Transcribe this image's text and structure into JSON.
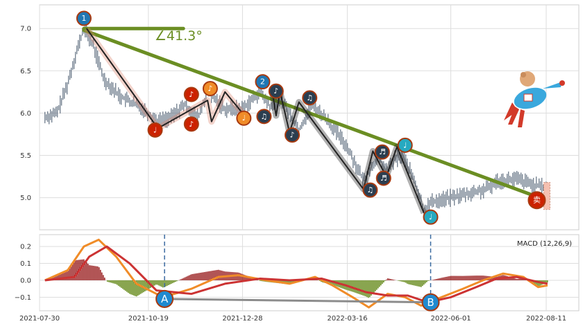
{
  "chart_data": [
    {
      "type": "candlestick",
      "title": "",
      "xlabel": "",
      "ylabel": "",
      "ylim": [
        4.62,
        7.28
      ],
      "grid": true,
      "x_tick_labels": [
        "2021-07-30",
        "2021-10-19",
        "2021-12-28",
        "2022-03-16",
        "2022-06-01",
        "2022-08-11"
      ],
      "x_tick_dates": [
        "2021-07-30",
        "2021-10-19",
        "2021-12-28",
        "2022-03-16",
        "2022-06-01",
        "2022-08-11"
      ],
      "y_ticks": [
        5.0,
        5.5,
        6.0,
        6.5,
        7.0
      ],
      "y_tick_labels": [
        "5.0",
        "5.5",
        "6.0",
        "6.5",
        "7.0"
      ],
      "price_path": [
        {
          "date": "2021-08-03",
          "close": 5.95
        },
        {
          "date": "2021-08-12",
          "close": 6.0
        },
        {
          "date": "2021-08-20",
          "close": 6.35
        },
        {
          "date": "2021-08-26",
          "close": 6.7
        },
        {
          "date": "2021-09-01",
          "close": 7.0
        },
        {
          "date": "2021-09-08",
          "close": 6.8
        },
        {
          "date": "2021-09-16",
          "close": 6.4
        },
        {
          "date": "2021-09-28",
          "close": 6.2
        },
        {
          "date": "2021-10-15",
          "close": 6.05
        },
        {
          "date": "2021-10-26",
          "close": 5.9
        },
        {
          "date": "2021-11-05",
          "close": 5.95
        },
        {
          "date": "2021-11-15",
          "close": 6.1
        },
        {
          "date": "2021-11-25",
          "close": 5.95
        },
        {
          "date": "2021-12-02",
          "close": 6.25
        },
        {
          "date": "2021-12-15",
          "close": 6.05
        },
        {
          "date": "2021-12-28",
          "close": 6.05
        },
        {
          "date": "2022-01-10",
          "close": 6.25
        },
        {
          "date": "2022-01-19",
          "close": 6.05
        },
        {
          "date": "2022-01-25",
          "close": 6.2
        },
        {
          "date": "2022-02-08",
          "close": 5.8
        },
        {
          "date": "2022-02-18",
          "close": 6.1
        },
        {
          "date": "2022-03-02",
          "close": 5.9
        },
        {
          "date": "2022-03-16",
          "close": 5.6
        },
        {
          "date": "2022-03-28",
          "close": 5.2
        },
        {
          "date": "2022-04-01",
          "close": 5.3
        },
        {
          "date": "2022-04-08",
          "close": 5.5
        },
        {
          "date": "2022-04-14",
          "close": 5.3
        },
        {
          "date": "2022-04-20",
          "close": 5.45
        },
        {
          "date": "2022-04-26",
          "close": 5.5
        },
        {
          "date": "2022-05-05",
          "close": 5.2
        },
        {
          "date": "2022-05-12",
          "close": 4.85
        },
        {
          "date": "2022-05-18",
          "close": 4.95
        },
        {
          "date": "2022-06-01",
          "close": 5.0
        },
        {
          "date": "2022-06-15",
          "close": 5.05
        },
        {
          "date": "2022-06-28",
          "close": 5.1
        },
        {
          "date": "2022-07-06",
          "close": 5.2
        },
        {
          "date": "2022-07-20",
          "close": 5.22
        },
        {
          "date": "2022-08-01",
          "close": 5.15
        },
        {
          "date": "2022-08-11",
          "close": 5.12
        }
      ],
      "wave_segments": [
        {
          "dates": [
            "2021-09-03",
            "2021-10-26",
            "2021-12-02",
            "2021-12-05",
            "2021-12-15",
            "2021-12-28"
          ],
          "values": [
            7.0,
            5.82,
            6.15,
            5.9,
            6.25,
            6.0
          ],
          "color": "#d9826b"
        },
        {
          "dates": [
            "2022-01-19",
            "2022-01-22",
            "2022-01-25",
            "2022-02-01",
            "2022-02-08",
            "2022-03-28",
            "2022-04-04",
            "2022-04-14",
            "2022-04-22",
            "2022-05-12"
          ],
          "values": [
            6.27,
            5.97,
            6.25,
            5.77,
            6.13,
            5.1,
            5.55,
            5.25,
            5.6,
            4.82
          ],
          "color": "#1e1e1e"
        }
      ],
      "markers": [
        {
          "label": "1",
          "date": "2021-09-01",
          "value": 7.12,
          "color": "#1f77b4"
        },
        {
          "label": "♩",
          "date": "2021-10-24",
          "value": 5.8,
          "color": "#cc2200"
        },
        {
          "label": "♪",
          "date": "2021-11-20",
          "value": 6.22,
          "color": "#cc2200"
        },
        {
          "label": "♪",
          "date": "2021-11-20",
          "value": 5.87,
          "color": "#cc2200"
        },
        {
          "label": "♪",
          "date": "2021-12-04",
          "value": 6.29,
          "color": "#f08c28"
        },
        {
          "label": "♩",
          "date": "2021-12-29",
          "value": 5.94,
          "color": "#f08c28"
        },
        {
          "label": "2",
          "date": "2022-01-12",
          "value": 6.37,
          "color": "#1f77b4"
        },
        {
          "label": "♫",
          "date": "2022-01-13",
          "value": 5.96,
          "color": "#2b3e50"
        },
        {
          "label": "♪",
          "date": "2022-01-22",
          "value": 6.26,
          "color": "#2b3e50"
        },
        {
          "label": "♪",
          "date": "2022-02-03",
          "value": 5.74,
          "color": "#2b3e50"
        },
        {
          "label": "♫",
          "date": "2022-02-16",
          "value": 6.18,
          "color": "#2b3e50"
        },
        {
          "label": "♫",
          "date": "2022-04-02",
          "value": 5.09,
          "color": "#2b3e50"
        },
        {
          "label": "♬",
          "date": "2022-04-11",
          "value": 5.54,
          "color": "#2b3e50"
        },
        {
          "label": "♬",
          "date": "2022-04-12",
          "value": 5.23,
          "color": "#2b3e50"
        },
        {
          "label": "♩",
          "date": "2022-04-28",
          "value": 5.62,
          "color": "#26a9c0"
        },
        {
          "label": "♩",
          "date": "2022-05-17",
          "value": 4.77,
          "color": "#26a9c0"
        },
        {
          "label": "卖",
          "date": "2022-08-04",
          "value": 4.97,
          "color": "#cc2200"
        }
      ],
      "trend_line": {
        "dates": [
          "2021-09-01",
          "2022-08-06"
        ],
        "values": [
          6.98,
          5.0
        ],
        "color": "#6b8e23"
      },
      "horizontal_ref": {
        "dates": [
          "2021-09-01",
          "2021-11-14"
        ],
        "value": 7.0,
        "color": "#6b8e23"
      },
      "angle_label": "∠41.3°"
    },
    {
      "type": "bar",
      "title": "",
      "legend_label": "MACD (12,26,9)",
      "legend_position": "top-right",
      "ylim": [
        -0.18,
        0.27
      ],
      "y_ticks": [
        -0.1,
        0.0,
        0.1,
        0.2
      ],
      "y_tick_labels": [
        "−0.1",
        "0.0",
        "0.1",
        "0.2"
      ],
      "dif": {
        "dates": [
          "2021-08-03",
          "2021-08-20",
          "2021-09-01",
          "2021-09-12",
          "2021-09-25",
          "2021-10-10",
          "2021-10-30",
          "2021-11-20",
          "2021-12-10",
          "2021-12-25",
          "2022-01-15",
          "2022-02-01",
          "2022-02-20",
          "2022-03-05",
          "2022-03-20",
          "2022-04-01",
          "2022-04-15",
          "2022-04-28",
          "2022-05-10",
          "2022-05-25",
          "2022-06-10",
          "2022-06-25",
          "2022-07-10",
          "2022-07-25",
          "2022-08-05",
          "2022-08-12"
        ],
        "values": [
          0.0,
          0.06,
          0.2,
          0.24,
          0.14,
          -0.02,
          -0.1,
          -0.05,
          0.02,
          0.03,
          0.0,
          -0.02,
          0.02,
          -0.03,
          -0.1,
          -0.16,
          -0.08,
          -0.1,
          -0.15,
          -0.1,
          -0.05,
          0.0,
          0.04,
          0.02,
          -0.04,
          -0.03
        ],
        "color": "#f08c28"
      },
      "dea": {
        "dates": [
          "2021-08-03",
          "2021-08-25",
          "2021-09-05",
          "2021-09-18",
          "2021-10-05",
          "2021-10-25",
          "2021-11-20",
          "2021-12-15",
          "2022-01-10",
          "2022-02-01",
          "2022-02-25",
          "2022-03-15",
          "2022-03-30",
          "2022-04-15",
          "2022-04-30",
          "2022-05-15",
          "2022-06-01",
          "2022-06-20",
          "2022-07-05",
          "2022-07-20",
          "2022-08-05",
          "2022-08-12"
        ],
        "values": [
          0.0,
          0.02,
          0.14,
          0.2,
          0.1,
          -0.06,
          -0.08,
          -0.02,
          0.01,
          0.0,
          0.01,
          -0.03,
          -0.07,
          -0.09,
          -0.09,
          -0.13,
          -0.1,
          -0.04,
          0.01,
          0.02,
          -0.01,
          -0.02
        ],
        "color": "#cc3333"
      },
      "histogram_hint": "positive bars dark red, negative bars olive green",
      "markers": [
        {
          "label": "A",
          "date": "2021-10-31",
          "value": -0.11
        },
        {
          "label": "B",
          "date": "2022-05-17",
          "value": -0.13
        }
      ],
      "divergence_line": {
        "dates": [
          "2021-10-31",
          "2022-05-17"
        ],
        "values": [
          -0.11,
          -0.13
        ],
        "color": "#8c8c8c"
      }
    }
  ]
}
